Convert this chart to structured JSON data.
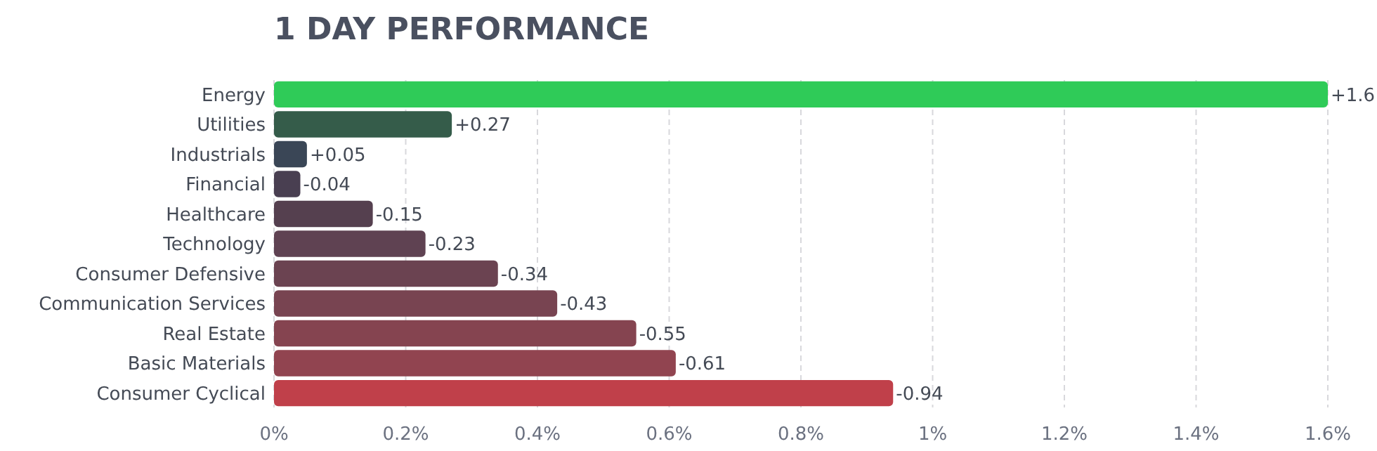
{
  "chart_data": {
    "type": "bar",
    "title": "1 DAY PERFORMANCE",
    "orientation": "horizontal",
    "categories": [
      "Energy",
      "Utilities",
      "Industrials",
      "Financial",
      "Healthcare",
      "Technology",
      "Consumer Defensive",
      "Communication Services",
      "Real Estate",
      "Basic Materials",
      "Consumer Cyclical"
    ],
    "values": [
      1.6,
      0.27,
      0.05,
      0.04,
      0.15,
      0.23,
      0.34,
      0.43,
      0.55,
      0.61,
      0.94
    ],
    "annotations": [
      {
        "text": "+1.6",
        "x": 1.6,
        "y": "Energy"
      },
      {
        "text": "+0.27",
        "x": 0.27,
        "y": "Utilities"
      },
      {
        "text": "+0.05",
        "x": 0.05,
        "y": "Industrials"
      },
      {
        "text": "-0.04",
        "x": 0.04,
        "y": "Financial"
      },
      {
        "text": "-0.15",
        "x": 0.15,
        "y": "Healthcare"
      },
      {
        "text": "-0.23",
        "x": 0.23,
        "y": "Technology"
      },
      {
        "text": "-0.34",
        "x": 0.34,
        "y": "Consumer Defensive"
      },
      {
        "text": "-0.43",
        "x": 0.43,
        "y": "Communication Services"
      },
      {
        "text": "-0.55",
        "x": 0.55,
        "y": "Real Estate"
      },
      {
        "text": "-0.61",
        "x": 0.61,
        "y": "Basic Materials"
      },
      {
        "text": "-0.94",
        "x": 0.94,
        "y": "Consumer Cyclical"
      }
    ],
    "colors": [
      "#2fcb58",
      "#355c4a",
      "#3a4656",
      "#493f51",
      "#55404f",
      "#5f4252",
      "#6b4351",
      "#784451",
      "#854450",
      "#914450",
      "#c0404a"
    ],
    "xlim": [
      0,
      1.6
    ],
    "xticks": [
      {
        "value": 0,
        "label": "0%"
      },
      {
        "value": 0.2,
        "label": "0.2%"
      },
      {
        "value": 0.4,
        "label": "0.4%"
      },
      {
        "value": 0.6,
        "label": "0.6%"
      },
      {
        "value": 0.8,
        "label": "0.8%"
      },
      {
        "value": 1,
        "label": "1%"
      },
      {
        "value": 1.2,
        "label": "1.2%"
      },
      {
        "value": 1.4,
        "label": "1.4%"
      },
      {
        "value": 1.6,
        "label": "1.6%"
      }
    ],
    "grid": "x"
  }
}
